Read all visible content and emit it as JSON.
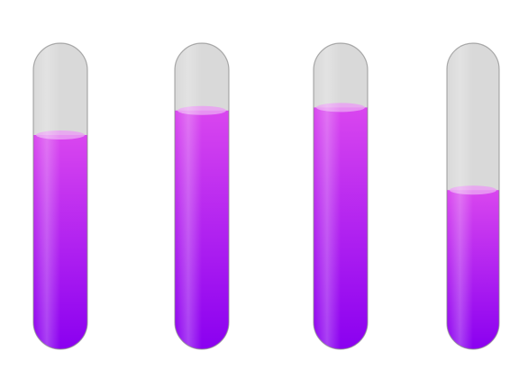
{
  "tubes": [
    {
      "fill_fraction": 0.7
    },
    {
      "fill_fraction": 0.78
    },
    {
      "fill_fraction": 0.79
    },
    {
      "fill_fraction": 0.52
    }
  ],
  "colors": {
    "glass_gray": "#d9d9d9",
    "glass_outline": "#8a8a8a",
    "liquid_top": "#d946ef",
    "liquid_bottom": "#8a00f0",
    "meniscus": "#e9a0f2"
  }
}
